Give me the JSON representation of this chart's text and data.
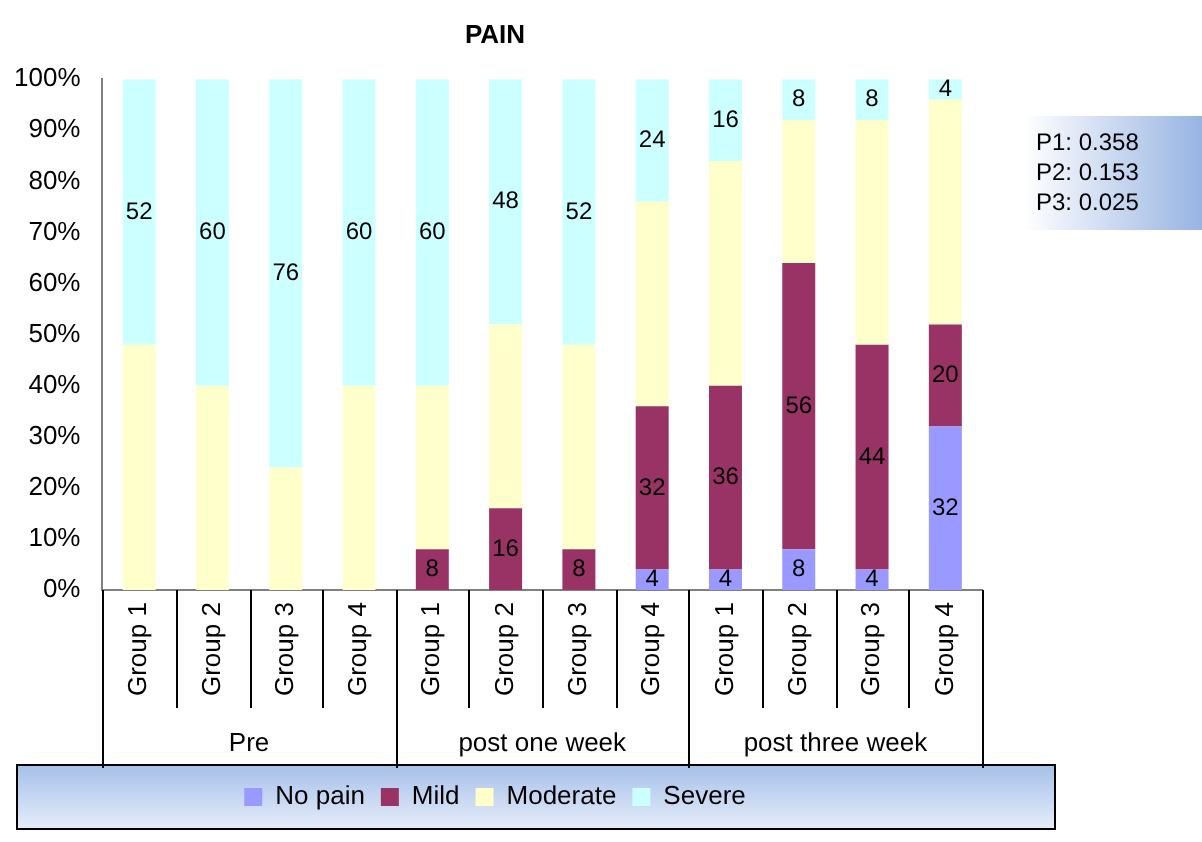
{
  "chart_data": {
    "type": "bar",
    "stacked": true,
    "title": "PAIN",
    "categories": [
      "Group 1",
      "Group 2",
      "Group 3",
      "Group 4",
      "Group 1",
      "Group 2",
      "Group 3",
      "Group 4",
      "Group 1",
      "Group 2",
      "Group 3",
      "Group 4"
    ],
    "series": [
      {
        "name": "No pain",
        "color": "#9999ff",
        "values": [
          0,
          0,
          0,
          0,
          0,
          0,
          0,
          4,
          4,
          8,
          4,
          32
        ],
        "value_labels": [
          null,
          null,
          null,
          null,
          null,
          null,
          null,
          "4",
          "4",
          "8",
          "4",
          "32"
        ]
      },
      {
        "name": "Mild",
        "color": "#993366",
        "values": [
          0,
          0,
          0,
          0,
          8,
          16,
          8,
          32,
          36,
          56,
          44,
          20
        ],
        "value_labels": [
          null,
          null,
          null,
          null,
          "8",
          "16",
          "8",
          "32",
          "36",
          "56",
          "44",
          "20"
        ]
      },
      {
        "name": "Moderate",
        "color": "#ffffcc",
        "values": [
          48,
          40,
          24,
          40,
          32,
          36,
          40,
          40,
          44,
          28,
          44,
          44
        ]
      },
      {
        "name": "Severe",
        "color": "#ccffff",
        "values": [
          52,
          60,
          76,
          60,
          60,
          48,
          52,
          24,
          16,
          8,
          8,
          4
        ],
        "value_labels": [
          "52",
          "60",
          "76",
          "60",
          "60",
          "48",
          "52",
          "24",
          "16",
          "8",
          "8",
          "4"
        ]
      }
    ],
    "ylim": [
      0,
      100
    ],
    "yticks": [
      {
        "value": 0,
        "label": "0%"
      },
      {
        "value": 10,
        "label": "10%"
      },
      {
        "value": 20,
        "label": "20%"
      },
      {
        "value": 30,
        "label": "30%"
      },
      {
        "value": 40,
        "label": "40%"
      },
      {
        "value": 50,
        "label": "50%"
      },
      {
        "value": 60,
        "label": "60%"
      },
      {
        "value": 70,
        "label": "70%"
      },
      {
        "value": 80,
        "label": "80%"
      },
      {
        "value": 90,
        "label": "90%"
      },
      {
        "value": 100,
        "label": "100%"
      }
    ],
    "grid": false,
    "legend": "bottom",
    "annotations": [
      "Pre",
      "post one week",
      "post three week",
      "P1: 0.358\nP2: 0.153\nP3: 0.025"
    ]
  }
}
